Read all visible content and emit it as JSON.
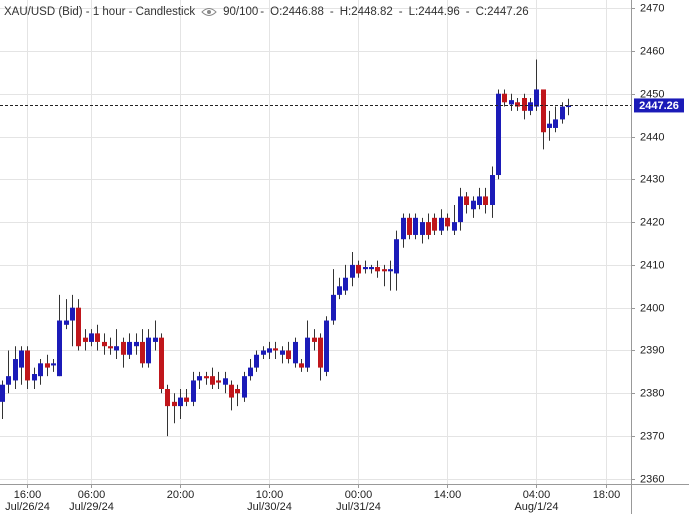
{
  "chart_data": {
    "type": "candlestick",
    "title": "XAU/USD (Bid) - 1 hour - Candlestick",
    "count_label": "90/100",
    "ohlc_labels": [
      "O:2446.88",
      "H:2448.82",
      "L:2444.96",
      "C:2447.26"
    ],
    "categories": [
      null,
      null,
      null,
      null,
      "16:00",
      null,
      null,
      null,
      null,
      null,
      null,
      null,
      null,
      null,
      "06:00",
      null,
      null,
      null,
      null,
      null,
      null,
      null,
      null,
      null,
      null,
      null,
      null,
      null,
      "20:00",
      null,
      null,
      null,
      null,
      null,
      null,
      null,
      null,
      null,
      null,
      null,
      null,
      null,
      "10:00",
      null,
      null,
      null,
      null,
      null,
      null,
      null,
      null,
      null,
      null,
      null,
      null,
      null,
      "00:00",
      null,
      null,
      null,
      null,
      null,
      null,
      null,
      null,
      null,
      null,
      null,
      null,
      null,
      "14:00",
      null,
      null,
      null,
      null,
      null,
      null,
      null,
      null,
      null,
      null,
      null,
      null,
      null,
      "04:00",
      null,
      null,
      null,
      null,
      null,
      null,
      null,
      null,
      null,
      null,
      "18:00"
    ],
    "category_dates": [
      null,
      null,
      null,
      null,
      "Jul/26/24",
      null,
      null,
      null,
      null,
      null,
      null,
      null,
      null,
      null,
      "Jul/29/24",
      null,
      null,
      null,
      null,
      null,
      null,
      null,
      null,
      null,
      null,
      null,
      null,
      null,
      null,
      null,
      null,
      null,
      null,
      null,
      null,
      null,
      null,
      null,
      null,
      null,
      null,
      null,
      "Jul/30/24",
      null,
      null,
      null,
      null,
      null,
      null,
      null,
      null,
      null,
      null,
      null,
      null,
      null,
      "Jul/31/24",
      null,
      null,
      null,
      null,
      null,
      null,
      null,
      null,
      null,
      null,
      null,
      null,
      null,
      null,
      null,
      null,
      null,
      null,
      null,
      null,
      null,
      null,
      null,
      null,
      null,
      null,
      null,
      "Aug/1/24",
      null,
      null,
      null,
      null,
      null,
      null,
      null,
      null,
      null,
      null,
      null
    ],
    "open": [
      2378,
      2382,
      2383,
      2386,
      2390,
      2383,
      2384,
      2387,
      2386.5,
      2384,
      2396,
      2397,
      2400,
      2393,
      2392,
      2394,
      2392,
      2391,
      2390,
      2392,
      2389,
      2391,
      2392,
      2387,
      2392,
      2393,
      2381,
      2378,
      2377,
      2379,
      2378,
      2383,
      2384,
      2384,
      2383,
      2382,
      2382,
      2381,
      2379,
      2384,
      2386,
      2389,
      2389.5,
      2390.5,
      2389,
      2390,
      2387,
      2387,
      2386,
      2393,
      2393,
      2385,
      2397,
      2403,
      2404,
      2407,
      2410,
      2409,
      2409,
      2409.5,
      2409,
      2408.5,
      2408,
      2416,
      2421,
      2417,
      2417,
      2420,
      2421,
      2418,
      2421,
      2418,
      2420,
      2426,
      2423,
      2424,
      2426,
      2424,
      2431,
      2450,
      2447.5,
      2448,
      2449,
      2446,
      2447,
      2451,
      2442,
      2442,
      2444,
      2446.88,
      null,
      null,
      null,
      null,
      null,
      null
    ],
    "high": [
      2383,
      2390,
      2391,
      2391,
      2391,
      2386,
      2388,
      2389,
      2388,
      2403,
      2402,
      2403,
      2402,
      2395,
      2395,
      2396,
      2394,
      2393,
      2395,
      2393,
      2394,
      2394,
      2395,
      2395,
      2397,
      2394,
      2382,
      2380,
      2381,
      2381,
      2385,
      2385,
      2385,
      2386,
      2385,
      2385,
      2383,
      2382,
      2385,
      2388,
      2390,
      2391,
      2392,
      2392,
      2391,
      2392,
      2393,
      2388,
      2397,
      2395,
      2394,
      2398,
      2409,
      2407,
      2410,
      2413,
      2411,
      2411,
      2410,
      2411,
      2410,
      2411,
      2418,
      2422,
      2422,
      2422,
      2421,
      2422,
      2422,
      2423,
      2422,
      2424,
      2428,
      2427,
      2426,
      2428,
      2428,
      2433,
      2451,
      2451,
      2450,
      2449,
      2450,
      2449,
      2458,
      2451,
      2446,
      2447,
      2448,
      2448.82,
      null,
      null,
      null,
      null,
      null,
      null
    ],
    "low": [
      2374,
      2380,
      2381,
      2382,
      2381,
      2381,
      2382,
      2384,
      2385,
      2384,
      2395,
      2391,
      2390,
      2390,
      2391,
      2390,
      2389,
      2389,
      2388,
      2386,
      2388,
      2389,
      2386,
      2386,
      2390,
      2380,
      2370,
      2373,
      2374,
      2377,
      2377,
      2381,
      2382,
      2381,
      2381,
      2380,
      2376,
      2377,
      2378,
      2383,
      2385,
      2388,
      2388,
      2388,
      2387,
      2387,
      2386,
      2385,
      2385,
      2390,
      2383,
      2384,
      2396,
      2402,
      2403,
      2405,
      2407,
      2408,
      2408,
      2407,
      2405,
      2404,
      2404,
      2414,
      2416,
      2416,
      2415,
      2416,
      2417,
      2417,
      2418,
      2417,
      2418,
      2422,
      2421,
      2423,
      2422,
      2421,
      2430,
      2447,
      2446,
      2446,
      2444,
      2445,
      2446,
      2437,
      2439,
      2441,
      2443,
      2444.96,
      null,
      null,
      null,
      null,
      null,
      null
    ],
    "close": [
      2382,
      2384,
      2388,
      2390,
      2383,
      2384.5,
      2387,
      2386,
      2387,
      2397,
      2397,
      2400,
      2391,
      2392,
      2394,
      2392,
      2391,
      2390.5,
      2391,
      2389,
      2392,
      2392,
      2387,
      2393,
      2393,
      2381,
      2377,
      2377,
      2379,
      2378,
      2383,
      2384,
      2383.5,
      2382,
      2382.5,
      2383.5,
      2379,
      2380,
      2384,
      2386,
      2389,
      2390,
      2390.5,
      2390,
      2390,
      2388,
      2392,
      2386,
      2393,
      2392,
      2386,
      2397,
      2403,
      2405,
      2407,
      2410,
      2408,
      2409.5,
      2409.5,
      2408.5,
      2408.5,
      2409,
      2416,
      2421,
      2417,
      2421,
      2420,
      2417,
      2418,
      2421,
      2419,
      2420,
      2426,
      2424,
      2425,
      2426,
      2424,
      2431,
      2450,
      2448,
      2448.5,
      2447,
      2446,
      2448,
      2451,
      2441,
      2443,
      2444,
      2447,
      2447.26,
      null,
      null,
      null,
      null,
      null,
      null
    ],
    "up_color": "#1b1bb8",
    "down_color": "#c0161b",
    "last_price": 2447.26,
    "ylim": [
      2358.8,
      2471.9
    ],
    "yticks": [
      2360,
      2370,
      2380,
      2390,
      2400,
      2410,
      2420,
      2430,
      2440,
      2450,
      2460,
      2470
    ],
    "grid": true
  }
}
